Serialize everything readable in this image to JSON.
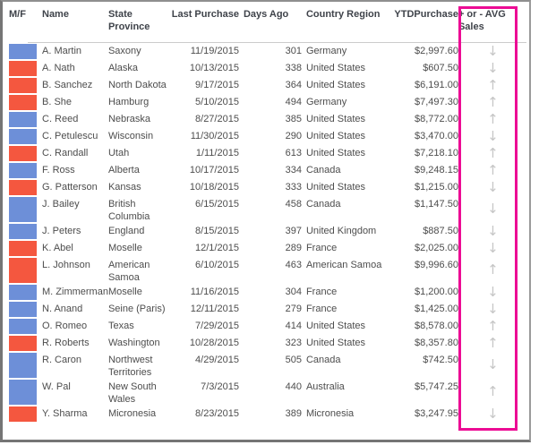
{
  "table": {
    "columns": [
      {
        "id": "mf",
        "label": "M/F"
      },
      {
        "id": "name",
        "label": "Name"
      },
      {
        "id": "state",
        "label": "State Province"
      },
      {
        "id": "last_purchase",
        "label": "Last Purchase"
      },
      {
        "id": "days_ago",
        "label": "Days Ago"
      },
      {
        "id": "country",
        "label": "Country Region"
      },
      {
        "id": "ytd",
        "label": "YTDPurchase"
      },
      {
        "id": "avg",
        "label": "+ or - AVG Sales"
      }
    ],
    "rows": [
      {
        "bar": "blue",
        "name": "A. Martin",
        "state": "Saxony",
        "last_purchase": "11/19/2015",
        "days_ago": "301",
        "country": "Germany",
        "ytd": "$2,997.60",
        "avg_trend": "down"
      },
      {
        "bar": "red",
        "name": "A. Nath",
        "state": "Alaska",
        "last_purchase": "10/13/2015",
        "days_ago": "338",
        "country": "United States",
        "ytd": "$607.50",
        "avg_trend": "down"
      },
      {
        "bar": "red",
        "name": "B. Sanchez",
        "state": "North Dakota",
        "last_purchase": "9/17/2015",
        "days_ago": "364",
        "country": "United States",
        "ytd": "$6,191.00",
        "avg_trend": "up"
      },
      {
        "bar": "red",
        "name": "B. She",
        "state": "Hamburg",
        "last_purchase": "5/10/2015",
        "days_ago": "494",
        "country": "Germany",
        "ytd": "$7,497.30",
        "avg_trend": "up"
      },
      {
        "bar": "blue",
        "name": "C. Reed",
        "state": "Nebraska",
        "last_purchase": "8/27/2015",
        "days_ago": "385",
        "country": "United States",
        "ytd": "$8,772.00",
        "avg_trend": "up"
      },
      {
        "bar": "blue",
        "name": "C. Petulescu",
        "state": "Wisconsin",
        "last_purchase": "11/30/2015",
        "days_ago": "290",
        "country": "United States",
        "ytd": "$3,470.00",
        "avg_trend": "down"
      },
      {
        "bar": "red",
        "name": "C. Randall",
        "state": "Utah",
        "last_purchase": "1/11/2015",
        "days_ago": "613",
        "country": "United States",
        "ytd": "$7,218.10",
        "avg_trend": "up"
      },
      {
        "bar": "blue",
        "name": "F. Ross",
        "state": "Alberta",
        "last_purchase": "10/17/2015",
        "days_ago": "334",
        "country": "Canada",
        "ytd": "$9,248.15",
        "avg_trend": "up"
      },
      {
        "bar": "red",
        "name": "G. Patterson",
        "state": "Kansas",
        "last_purchase": "10/18/2015",
        "days_ago": "333",
        "country": "United States",
        "ytd": "$1,215.00",
        "avg_trend": "down"
      },
      {
        "bar": "blue",
        "name": "J. Bailey",
        "state": "British Columbia",
        "last_purchase": "6/15/2015",
        "days_ago": "458",
        "country": "Canada",
        "ytd": "$1,147.50",
        "avg_trend": "down"
      },
      {
        "bar": "blue",
        "name": "J. Peters",
        "state": "England",
        "last_purchase": "8/15/2015",
        "days_ago": "397",
        "country": "United Kingdom",
        "ytd": "$887.50",
        "avg_trend": "down"
      },
      {
        "bar": "red",
        "name": "K. Abel",
        "state": "Moselle",
        "last_purchase": "12/1/2015",
        "days_ago": "289",
        "country": "France",
        "ytd": "$2,025.00",
        "avg_trend": "down"
      },
      {
        "bar": "red",
        "name": "L. Johnson",
        "state": "American Samoa",
        "last_purchase": "6/10/2015",
        "days_ago": "463",
        "country": "American Samoa",
        "ytd": "$9,996.60",
        "avg_trend": "up"
      },
      {
        "bar": "blue",
        "name": "M. Zimmerman",
        "state": "Moselle",
        "last_purchase": "11/16/2015",
        "days_ago": "304",
        "country": "France",
        "ytd": "$1,200.00",
        "avg_trend": "down"
      },
      {
        "bar": "blue",
        "name": "N. Anand",
        "state": "Seine (Paris)",
        "last_purchase": "12/11/2015",
        "days_ago": "279",
        "country": "France",
        "ytd": "$1,425.00",
        "avg_trend": "down"
      },
      {
        "bar": "blue",
        "name": "O. Romeo",
        "state": "Texas",
        "last_purchase": "7/29/2015",
        "days_ago": "414",
        "country": "United States",
        "ytd": "$8,578.00",
        "avg_trend": "up"
      },
      {
        "bar": "red",
        "name": "R. Roberts",
        "state": "Washington",
        "last_purchase": "10/28/2015",
        "days_ago": "323",
        "country": "United States",
        "ytd": "$8,357.80",
        "avg_trend": "up"
      },
      {
        "bar": "blue",
        "name": "R. Caron",
        "state": "Northwest Territories",
        "last_purchase": "4/29/2015",
        "days_ago": "505",
        "country": "Canada",
        "ytd": "$742.50",
        "avg_trend": "down"
      },
      {
        "bar": "blue",
        "name": "W. Pal",
        "state": "New South Wales",
        "last_purchase": "7/3/2015",
        "days_ago": "440",
        "country": "Australia",
        "ytd": "$5,747.25",
        "avg_trend": "up"
      },
      {
        "bar": "red",
        "name": "Y. Sharma",
        "state": "Micronesia",
        "last_purchase": "8/23/2015",
        "days_ago": "389",
        "country": "Micronesia",
        "ytd": "$3,247.95",
        "avg_trend": "down"
      }
    ]
  },
  "icons": {
    "up": "↑",
    "down": "↓"
  },
  "colors": {
    "blue_bar": "#6d8fd8",
    "red_bar": "#f4573f",
    "trend_arrow": "#c6c6c6",
    "highlight": "#ec0c94"
  }
}
